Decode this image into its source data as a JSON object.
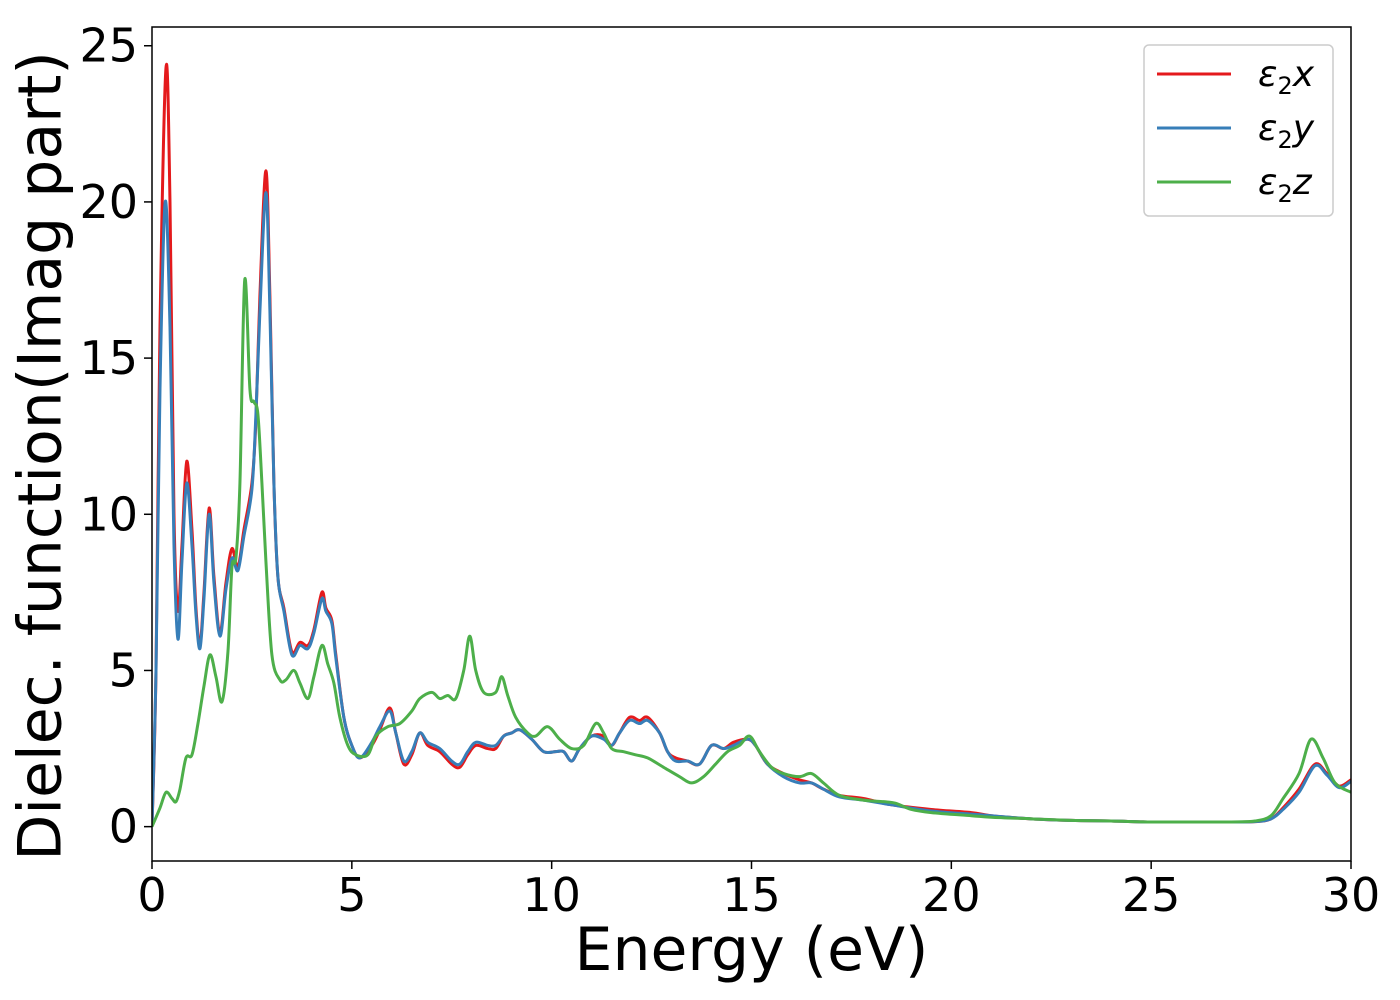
{
  "chart_data": {
    "type": "line",
    "xlabel": "Energy (eV)",
    "ylabel": "Dielec. function(Imag part)",
    "xlim": [
      0,
      30
    ],
    "ylim": [
      -1.1,
      25.6
    ],
    "xticks": [
      0,
      5,
      10,
      15,
      20,
      25,
      30
    ],
    "yticks": [
      0,
      5,
      10,
      15,
      20,
      25
    ],
    "grid": false,
    "legend_position": "top-right",
    "series": [
      {
        "name": "ε₂x",
        "legend_base": "ε",
        "legend_sub": "2",
        "legend_suffix": "x",
        "color": "#e41a1c",
        "points": [
          [
            0,
            0
          ],
          [
            0.1,
            5
          ],
          [
            0.2,
            16
          ],
          [
            0.35,
            24.3
          ],
          [
            0.45,
            20
          ],
          [
            0.55,
            10
          ],
          [
            0.65,
            6.9
          ],
          [
            0.75,
            9
          ],
          [
            0.87,
            11.7
          ],
          [
            1.0,
            9.5
          ],
          [
            1.1,
            7
          ],
          [
            1.2,
            5.8
          ],
          [
            1.3,
            7.5
          ],
          [
            1.43,
            10.2
          ],
          [
            1.55,
            8
          ],
          [
            1.7,
            6.2
          ],
          [
            1.85,
            7.8
          ],
          [
            2.0,
            8.9
          ],
          [
            2.15,
            8.3
          ],
          [
            2.3,
            9.5
          ],
          [
            2.5,
            11
          ],
          [
            2.6,
            13
          ],
          [
            2.7,
            17
          ],
          [
            2.85,
            21
          ],
          [
            2.95,
            17
          ],
          [
            3.05,
            11
          ],
          [
            3.15,
            8
          ],
          [
            3.3,
            7
          ],
          [
            3.5,
            5.6
          ],
          [
            3.7,
            5.9
          ],
          [
            3.9,
            5.8
          ],
          [
            4.05,
            6.3
          ],
          [
            4.25,
            7.5
          ],
          [
            4.35,
            7
          ],
          [
            4.5,
            6.6
          ],
          [
            4.6,
            5.5
          ],
          [
            4.8,
            3.5
          ],
          [
            5.0,
            2.6
          ],
          [
            5.2,
            2.2
          ],
          [
            5.5,
            2.6
          ],
          [
            5.7,
            3.1
          ],
          [
            5.95,
            3.8
          ],
          [
            6.1,
            3.0
          ],
          [
            6.3,
            2.0
          ],
          [
            6.5,
            2.3
          ],
          [
            6.7,
            3.0
          ],
          [
            6.9,
            2.6
          ],
          [
            7.2,
            2.4
          ],
          [
            7.5,
            2.0
          ],
          [
            7.7,
            1.9
          ],
          [
            7.9,
            2.3
          ],
          [
            8.1,
            2.6
          ],
          [
            8.4,
            2.5
          ],
          [
            8.6,
            2.5
          ],
          [
            8.8,
            2.9
          ],
          [
            9.0,
            3.0
          ],
          [
            9.2,
            3.1
          ],
          [
            9.5,
            2.8
          ],
          [
            9.8,
            2.4
          ],
          [
            10.1,
            2.4
          ],
          [
            10.3,
            2.4
          ],
          [
            10.5,
            2.1
          ],
          [
            10.7,
            2.5
          ],
          [
            11.0,
            2.9
          ],
          [
            11.3,
            2.9
          ],
          [
            11.5,
            2.6
          ],
          [
            11.7,
            3.0
          ],
          [
            11.95,
            3.5
          ],
          [
            12.2,
            3.4
          ],
          [
            12.4,
            3.5
          ],
          [
            12.7,
            3.0
          ],
          [
            12.9,
            2.4
          ],
          [
            13.1,
            2.2
          ],
          [
            13.4,
            2.1
          ],
          [
            13.7,
            2.0
          ],
          [
            14.0,
            2.6
          ],
          [
            14.3,
            2.5
          ],
          [
            14.55,
            2.7
          ],
          [
            14.9,
            2.8
          ],
          [
            15.1,
            2.6
          ],
          [
            15.4,
            2.0
          ],
          [
            15.8,
            1.7
          ],
          [
            16.2,
            1.5
          ],
          [
            16.5,
            1.4
          ],
          [
            16.8,
            1.2
          ],
          [
            17.2,
            1.0
          ],
          [
            17.8,
            0.9
          ],
          [
            18.5,
            0.7
          ],
          [
            19.5,
            0.55
          ],
          [
            20.5,
            0.45
          ],
          [
            21.0,
            0.35
          ],
          [
            22.0,
            0.25
          ],
          [
            23.0,
            0.2
          ],
          [
            24.0,
            0.18
          ],
          [
            25.0,
            0.15
          ],
          [
            26.0,
            0.15
          ],
          [
            27.0,
            0.15
          ],
          [
            27.6,
            0.16
          ],
          [
            28.0,
            0.25
          ],
          [
            28.3,
            0.6
          ],
          [
            28.7,
            1.2
          ],
          [
            29.1,
            2.0
          ],
          [
            29.4,
            1.7
          ],
          [
            29.7,
            1.3
          ],
          [
            30.0,
            1.5
          ]
        ]
      },
      {
        "name": "ε₂y",
        "legend_base": "ε",
        "legend_sub": "2",
        "legend_suffix": "y",
        "color": "#377eb8",
        "points": [
          [
            0,
            0
          ],
          [
            0.1,
            5
          ],
          [
            0.2,
            14
          ],
          [
            0.33,
            20
          ],
          [
            0.45,
            16
          ],
          [
            0.55,
            9
          ],
          [
            0.65,
            6
          ],
          [
            0.75,
            8.5
          ],
          [
            0.87,
            11.0
          ],
          [
            1.0,
            9
          ],
          [
            1.1,
            6.8
          ],
          [
            1.2,
            5.7
          ],
          [
            1.3,
            7.3
          ],
          [
            1.43,
            10.0
          ],
          [
            1.55,
            7.8
          ],
          [
            1.7,
            6.1
          ],
          [
            1.85,
            7.6
          ],
          [
            2.0,
            8.6
          ],
          [
            2.15,
            8.2
          ],
          [
            2.3,
            9.3
          ],
          [
            2.5,
            10.8
          ],
          [
            2.6,
            13.2
          ],
          [
            2.7,
            16.5
          ],
          [
            2.85,
            20.3
          ],
          [
            2.95,
            16.5
          ],
          [
            3.05,
            11
          ],
          [
            3.15,
            8
          ],
          [
            3.3,
            6.9
          ],
          [
            3.5,
            5.5
          ],
          [
            3.7,
            5.8
          ],
          [
            3.9,
            5.7
          ],
          [
            4.05,
            6.2
          ],
          [
            4.25,
            7.3
          ],
          [
            4.35,
            6.9
          ],
          [
            4.5,
            6.5
          ],
          [
            4.6,
            5.4
          ],
          [
            4.8,
            3.5
          ],
          [
            5.0,
            2.6
          ],
          [
            5.2,
            2.2
          ],
          [
            5.5,
            2.7
          ],
          [
            5.7,
            3.2
          ],
          [
            5.95,
            3.7
          ],
          [
            6.1,
            3.0
          ],
          [
            6.3,
            2.1
          ],
          [
            6.5,
            2.4
          ],
          [
            6.7,
            3.0
          ],
          [
            6.9,
            2.7
          ],
          [
            7.2,
            2.5
          ],
          [
            7.5,
            2.1
          ],
          [
            7.7,
            2.0
          ],
          [
            7.9,
            2.4
          ],
          [
            8.1,
            2.7
          ],
          [
            8.4,
            2.6
          ],
          [
            8.6,
            2.6
          ],
          [
            8.8,
            2.9
          ],
          [
            9.0,
            3.0
          ],
          [
            9.2,
            3.1
          ],
          [
            9.5,
            2.8
          ],
          [
            9.8,
            2.4
          ],
          [
            10.1,
            2.4
          ],
          [
            10.3,
            2.4
          ],
          [
            10.5,
            2.1
          ],
          [
            10.7,
            2.5
          ],
          [
            11.0,
            2.9
          ],
          [
            11.3,
            2.8
          ],
          [
            11.5,
            2.6
          ],
          [
            11.7,
            3.0
          ],
          [
            11.95,
            3.4
          ],
          [
            12.2,
            3.3
          ],
          [
            12.4,
            3.4
          ],
          [
            12.7,
            3.0
          ],
          [
            12.9,
            2.4
          ],
          [
            13.1,
            2.1
          ],
          [
            13.4,
            2.1
          ],
          [
            13.7,
            2.0
          ],
          [
            14.0,
            2.6
          ],
          [
            14.3,
            2.5
          ],
          [
            14.55,
            2.6
          ],
          [
            14.9,
            2.8
          ],
          [
            15.1,
            2.6
          ],
          [
            15.4,
            2.0
          ],
          [
            15.8,
            1.6
          ],
          [
            16.2,
            1.4
          ],
          [
            16.5,
            1.4
          ],
          [
            16.8,
            1.2
          ],
          [
            17.2,
            0.95
          ],
          [
            17.8,
            0.85
          ],
          [
            18.5,
            0.7
          ],
          [
            19.5,
            0.5
          ],
          [
            20.5,
            0.4
          ],
          [
            21.0,
            0.35
          ],
          [
            22.0,
            0.25
          ],
          [
            23.0,
            0.2
          ],
          [
            24.0,
            0.18
          ],
          [
            25.0,
            0.15
          ],
          [
            26.0,
            0.15
          ],
          [
            27.0,
            0.15
          ],
          [
            27.6,
            0.16
          ],
          [
            28.0,
            0.25
          ],
          [
            28.3,
            0.55
          ],
          [
            28.7,
            1.1
          ],
          [
            29.1,
            1.95
          ],
          [
            29.4,
            1.65
          ],
          [
            29.7,
            1.25
          ],
          [
            30.0,
            1.45
          ]
        ]
      },
      {
        "name": "ε₂z",
        "legend_base": "ε",
        "legend_sub": "2",
        "legend_suffix": "z",
        "color": "#4daf4a",
        "points": [
          [
            0,
            0
          ],
          [
            0.2,
            0.6
          ],
          [
            0.35,
            1.1
          ],
          [
            0.5,
            0.9
          ],
          [
            0.6,
            0.8
          ],
          [
            0.7,
            1.2
          ],
          [
            0.85,
            2.2
          ],
          [
            1.0,
            2.3
          ],
          [
            1.15,
            3.3
          ],
          [
            1.3,
            4.5
          ],
          [
            1.45,
            5.5
          ],
          [
            1.6,
            4.8
          ],
          [
            1.75,
            4.0
          ],
          [
            1.9,
            5.6
          ],
          [
            2.0,
            8.3
          ],
          [
            2.1,
            8.6
          ],
          [
            2.2,
            11
          ],
          [
            2.32,
            17.5
          ],
          [
            2.45,
            14
          ],
          [
            2.55,
            13.6
          ],
          [
            2.65,
            13.2
          ],
          [
            2.75,
            11
          ],
          [
            2.85,
            8.5
          ],
          [
            3.0,
            5.5
          ],
          [
            3.2,
            4.7
          ],
          [
            3.35,
            4.7
          ],
          [
            3.55,
            5.0
          ],
          [
            3.7,
            4.6
          ],
          [
            3.9,
            4.1
          ],
          [
            4.05,
            4.8
          ],
          [
            4.25,
            5.8
          ],
          [
            4.4,
            5.2
          ],
          [
            4.55,
            4.6
          ],
          [
            4.7,
            3.5
          ],
          [
            4.9,
            2.6
          ],
          [
            5.1,
            2.3
          ],
          [
            5.4,
            2.3
          ],
          [
            5.6,
            2.9
          ],
          [
            5.9,
            3.2
          ],
          [
            6.2,
            3.3
          ],
          [
            6.5,
            3.7
          ],
          [
            6.7,
            4.1
          ],
          [
            7.0,
            4.3
          ],
          [
            7.2,
            4.1
          ],
          [
            7.4,
            4.2
          ],
          [
            7.6,
            4.1
          ],
          [
            7.8,
            5.0
          ],
          [
            7.95,
            6.1
          ],
          [
            8.1,
            5.0
          ],
          [
            8.3,
            4.3
          ],
          [
            8.6,
            4.3
          ],
          [
            8.75,
            4.8
          ],
          [
            8.9,
            4.2
          ],
          [
            9.1,
            3.5
          ],
          [
            9.4,
            3.0
          ],
          [
            9.6,
            2.9
          ],
          [
            9.9,
            3.2
          ],
          [
            10.2,
            2.8
          ],
          [
            10.5,
            2.5
          ],
          [
            10.8,
            2.6
          ],
          [
            11.1,
            3.3
          ],
          [
            11.3,
            3.0
          ],
          [
            11.5,
            2.5
          ],
          [
            11.8,
            2.4
          ],
          [
            12.1,
            2.3
          ],
          [
            12.4,
            2.2
          ],
          [
            12.8,
            1.9
          ],
          [
            13.2,
            1.6
          ],
          [
            13.5,
            1.4
          ],
          [
            13.8,
            1.6
          ],
          [
            14.1,
            2.0
          ],
          [
            14.4,
            2.4
          ],
          [
            14.7,
            2.6
          ],
          [
            14.95,
            2.9
          ],
          [
            15.2,
            2.4
          ],
          [
            15.5,
            1.9
          ],
          [
            15.8,
            1.7
          ],
          [
            16.2,
            1.6
          ],
          [
            16.5,
            1.7
          ],
          [
            16.8,
            1.4
          ],
          [
            17.2,
            1.0
          ],
          [
            17.8,
            0.85
          ],
          [
            18.3,
            0.8
          ],
          [
            18.6,
            0.75
          ],
          [
            19.0,
            0.55
          ],
          [
            19.5,
            0.45
          ],
          [
            20.5,
            0.35
          ],
          [
            21.0,
            0.3
          ],
          [
            22.0,
            0.25
          ],
          [
            23.0,
            0.2
          ],
          [
            24.0,
            0.18
          ],
          [
            25.0,
            0.15
          ],
          [
            26.0,
            0.15
          ],
          [
            27.0,
            0.15
          ],
          [
            27.6,
            0.18
          ],
          [
            28.0,
            0.35
          ],
          [
            28.3,
            0.9
          ],
          [
            28.7,
            1.7
          ],
          [
            29.0,
            2.8
          ],
          [
            29.3,
            2.2
          ],
          [
            29.6,
            1.4
          ],
          [
            30.0,
            1.1
          ]
        ]
      }
    ]
  }
}
